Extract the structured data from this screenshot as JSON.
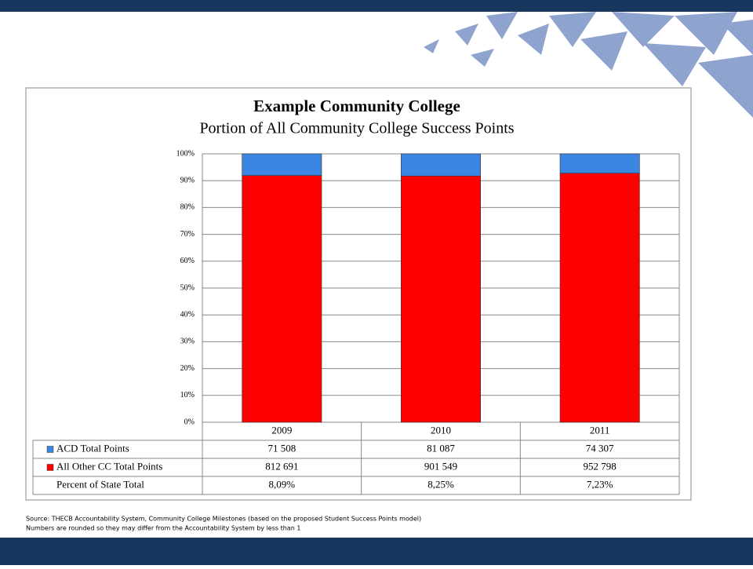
{
  "chart_data": {
    "type": "bar",
    "stacking": "percent",
    "title": "Example Community College",
    "subtitle": "Portion of All Community College Success Points",
    "categories": [
      "2009",
      "2010",
      "2011"
    ],
    "series": [
      {
        "name": "All Other CC Total Points",
        "color": "#ff0000",
        "values": [
          812691,
          901549,
          952798
        ],
        "value_labels": [
          "812 691",
          "901 549",
          "952 798"
        ]
      },
      {
        "name": "ACD Total Points",
        "color": "#3b86e3",
        "values": [
          71508,
          81087,
          74307
        ],
        "value_labels": [
          "71 508",
          "81 087",
          "74 307"
        ]
      }
    ],
    "extra_rows": [
      {
        "name": "Percent of State Total",
        "values": [
          8.09,
          8.25,
          7.23
        ],
        "value_labels": [
          "8,09%",
          "8,25%",
          "7,23%"
        ]
      }
    ],
    "ylim": [
      0,
      100
    ],
    "yticks": [
      {
        "value": 0,
        "label": "0%"
      },
      {
        "value": 10,
        "label": "10%"
      },
      {
        "value": 20,
        "label": "20%"
      },
      {
        "value": 30,
        "label": "30%"
      },
      {
        "value": 40,
        "label": "40%"
      },
      {
        "value": 50,
        "label": "50%"
      },
      {
        "value": 60,
        "label": "60%"
      },
      {
        "value": 70,
        "label": "70%"
      },
      {
        "value": 80,
        "label": "80%"
      },
      {
        "value": 90,
        "label": "90%"
      },
      {
        "value": 100,
        "label": "100%"
      }
    ],
    "grid": true,
    "source": "Source:  THECB Accountability System, Community College Milestones (based on the proposed Student Success Points model)",
    "note": "Numbers are rounded so they may differ from the Accountability System by less than 1"
  }
}
